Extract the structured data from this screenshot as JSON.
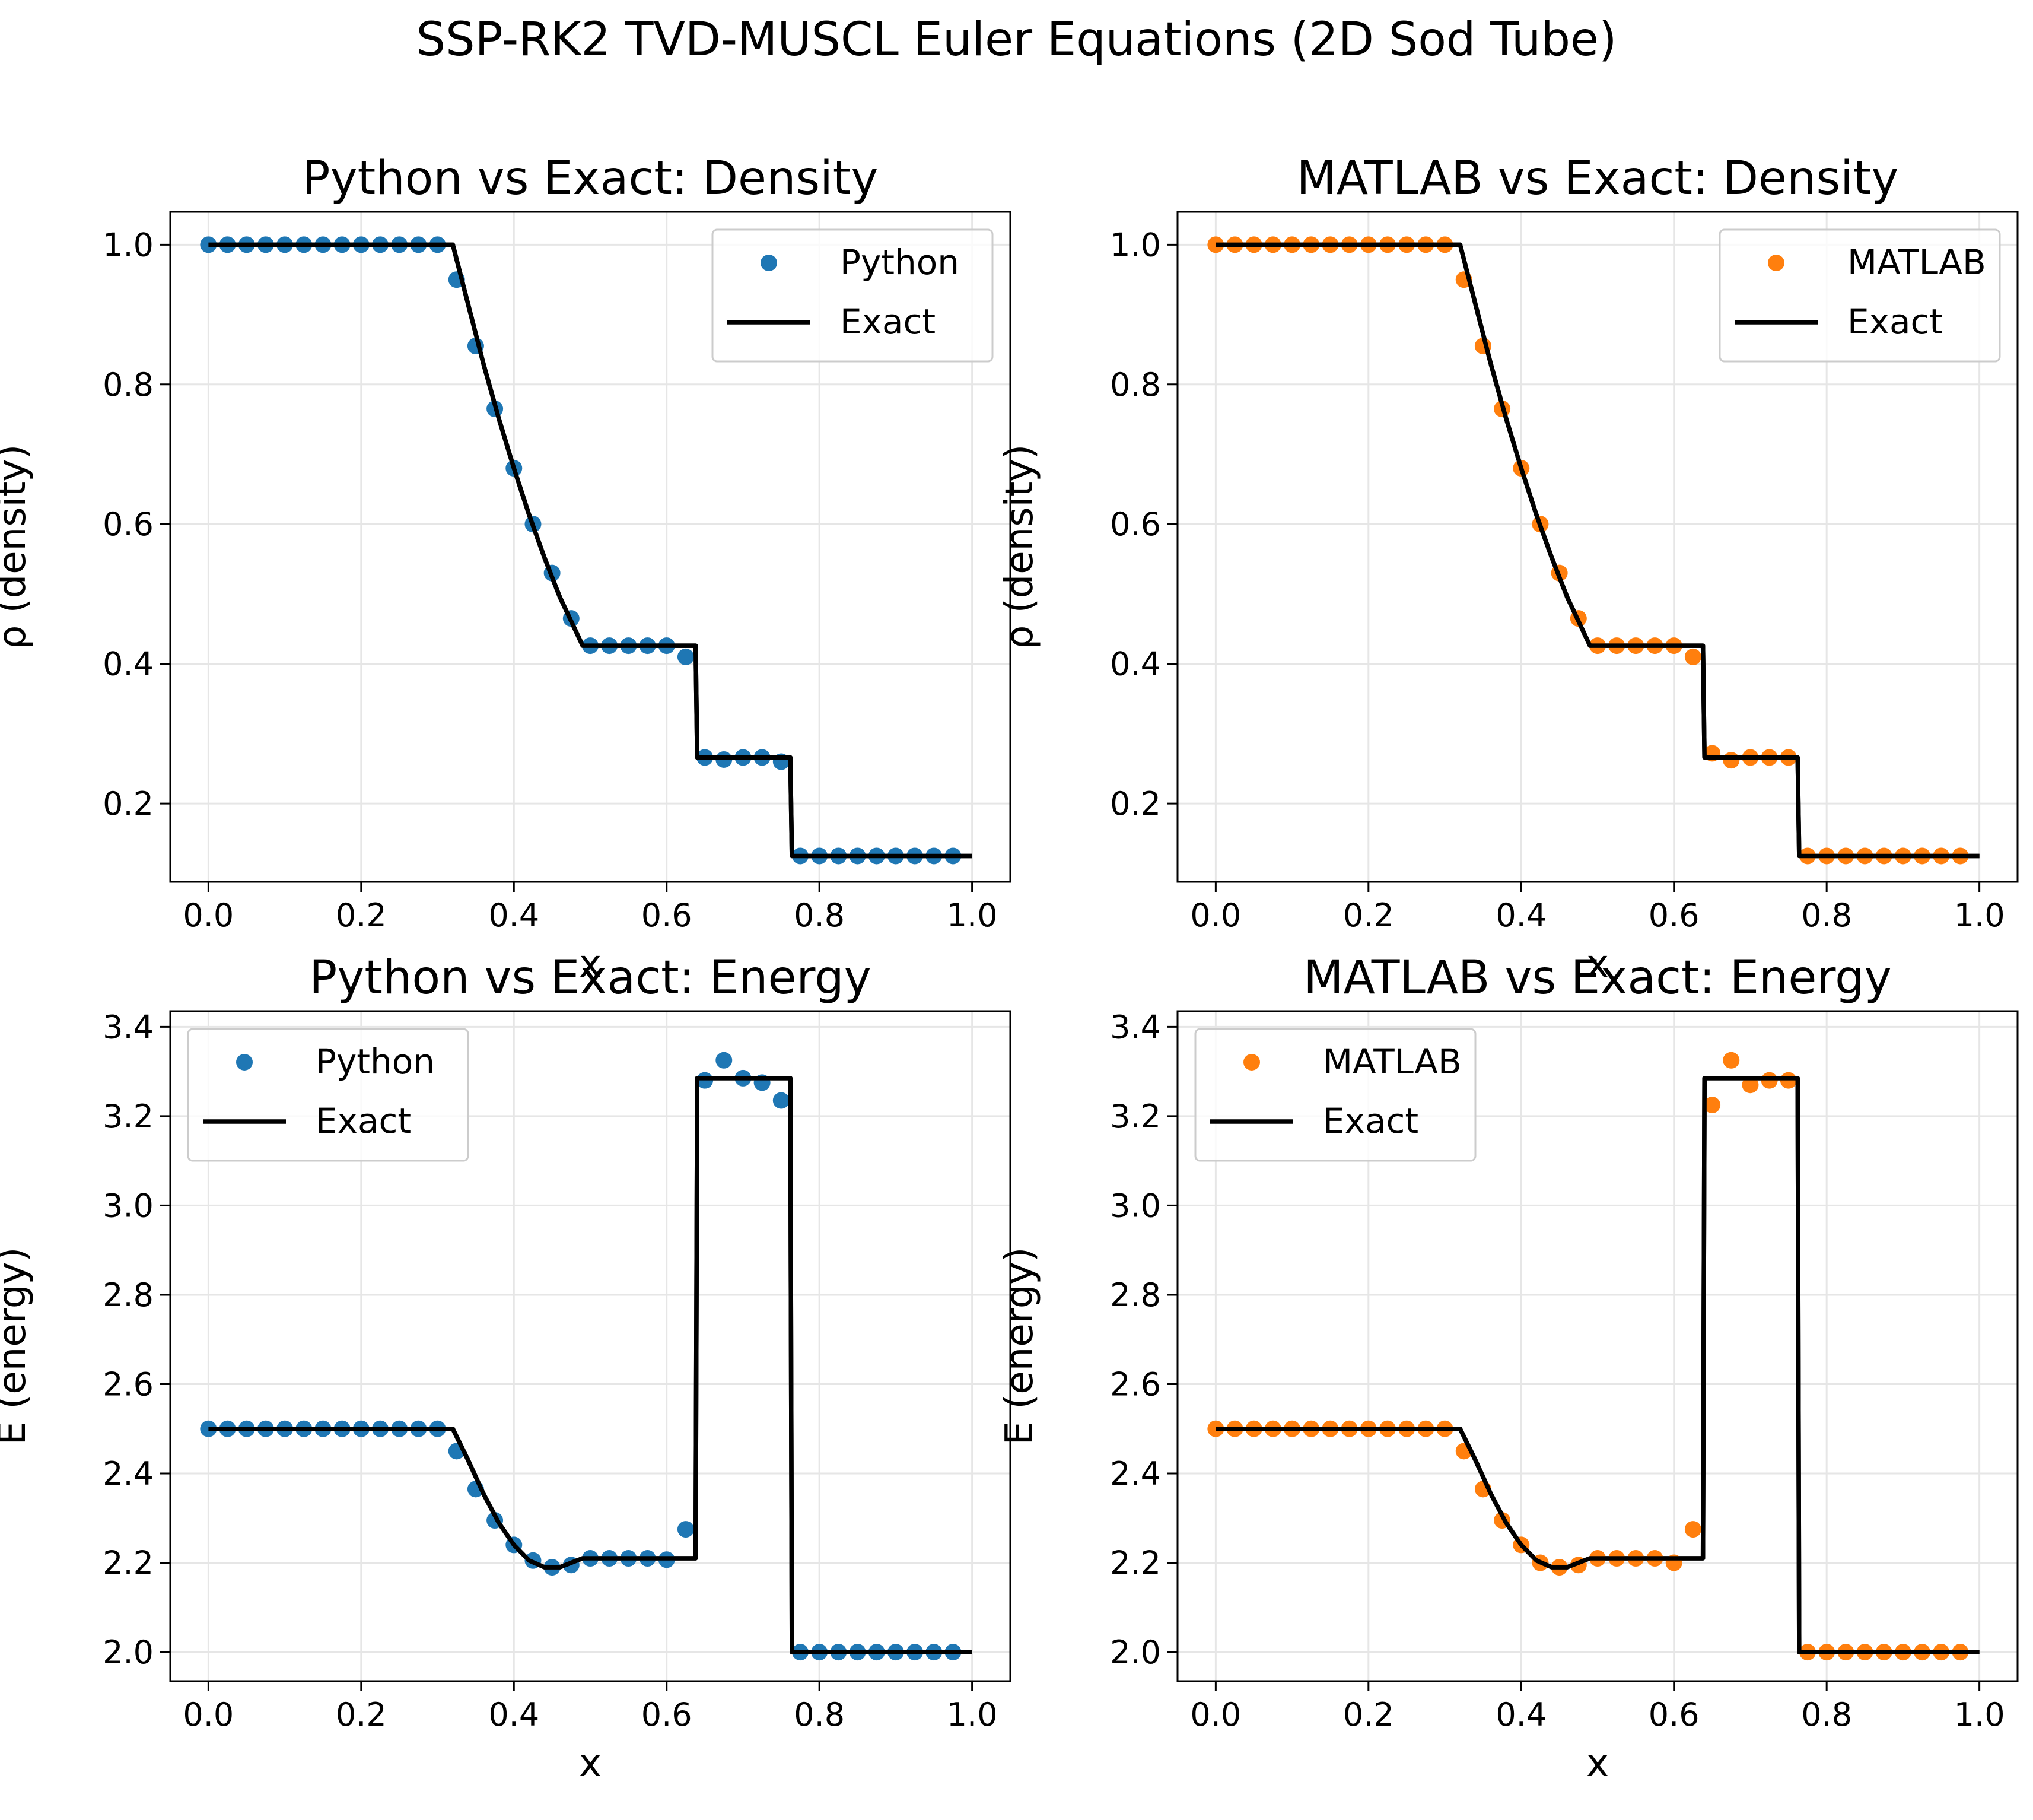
{
  "figure": {
    "title": "SSP-RK2 TVD-MUSCL Euler Equations (2D Sod Tube)"
  },
  "chart_data": [
    {
      "type": "line",
      "title": "Python vs Exact: Density",
      "xlabel": "x",
      "ylabel": "ρ (density)",
      "xlim": [
        -0.05,
        1.05
      ],
      "ylim": [
        0.088,
        1.047
      ],
      "xticks": [
        "0.0",
        "0.2",
        "0.4",
        "0.6",
        "0.8",
        "1.0"
      ],
      "yticks": [
        "0.2",
        "0.4",
        "0.6",
        "0.8",
        "1.0"
      ],
      "grid": true,
      "legend_position": "upper-right",
      "series": [
        {
          "name": "Python",
          "style": "markers",
          "color": "#1f77b4",
          "x": [
            0.0,
            0.025,
            0.05,
            0.075,
            0.1,
            0.125,
            0.15,
            0.175,
            0.2,
            0.225,
            0.25,
            0.275,
            0.3,
            0.325,
            0.35,
            0.375,
            0.4,
            0.425,
            0.45,
            0.475,
            0.5,
            0.525,
            0.55,
            0.575,
            0.6,
            0.625,
            0.65,
            0.675,
            0.7,
            0.725,
            0.75,
            0.775,
            0.8,
            0.825,
            0.85,
            0.875,
            0.9,
            0.925,
            0.95,
            0.975
          ],
          "y": [
            1.0,
            1.0,
            1.0,
            1.0,
            1.0,
            1.0,
            1.0,
            1.0,
            1.0,
            1.0,
            1.0,
            1.0,
            1.0,
            0.95,
            0.855,
            0.765,
            0.68,
            0.6,
            0.53,
            0.465,
            0.426,
            0.426,
            0.426,
            0.426,
            0.426,
            0.41,
            0.266,
            0.263,
            0.266,
            0.266,
            0.26,
            0.125,
            0.125,
            0.125,
            0.125,
            0.125,
            0.125,
            0.125,
            0.125,
            0.125
          ]
        },
        {
          "name": "Exact",
          "style": "line",
          "color": "#000000",
          "x": [
            0.0,
            0.32,
            0.34,
            0.36,
            0.38,
            0.4,
            0.42,
            0.44,
            0.46,
            0.49,
            0.638,
            0.64,
            0.762,
            0.764,
            1.0
          ],
          "y": [
            1.0,
            1.0,
            0.915,
            0.83,
            0.752,
            0.68,
            0.613,
            0.552,
            0.496,
            0.426,
            0.426,
            0.266,
            0.266,
            0.125,
            0.125
          ]
        }
      ]
    },
    {
      "type": "line",
      "title": "MATLAB vs Exact: Density",
      "xlabel": "x",
      "ylabel": "ρ (density)",
      "xlim": [
        -0.05,
        1.05
      ],
      "ylim": [
        0.088,
        1.047
      ],
      "xticks": [
        "0.0",
        "0.2",
        "0.4",
        "0.6",
        "0.8",
        "1.0"
      ],
      "yticks": [
        "0.2",
        "0.4",
        "0.6",
        "0.8",
        "1.0"
      ],
      "grid": true,
      "legend_position": "upper-right",
      "series": [
        {
          "name": "MATLAB",
          "style": "markers",
          "color": "#ff7f0e",
          "x": [
            0.0,
            0.025,
            0.05,
            0.075,
            0.1,
            0.125,
            0.15,
            0.175,
            0.2,
            0.225,
            0.25,
            0.275,
            0.3,
            0.325,
            0.35,
            0.375,
            0.4,
            0.425,
            0.45,
            0.475,
            0.5,
            0.525,
            0.55,
            0.575,
            0.6,
            0.625,
            0.65,
            0.675,
            0.7,
            0.725,
            0.75,
            0.775,
            0.8,
            0.825,
            0.85,
            0.875,
            0.9,
            0.925,
            0.95,
            0.975
          ],
          "y": [
            1.0,
            1.0,
            1.0,
            1.0,
            1.0,
            1.0,
            1.0,
            1.0,
            1.0,
            1.0,
            1.0,
            1.0,
            1.0,
            0.95,
            0.855,
            0.765,
            0.68,
            0.6,
            0.53,
            0.465,
            0.426,
            0.426,
            0.426,
            0.426,
            0.426,
            0.41,
            0.272,
            0.262,
            0.266,
            0.266,
            0.266,
            0.125,
            0.125,
            0.125,
            0.125,
            0.125,
            0.125,
            0.125,
            0.125,
            0.125
          ]
        },
        {
          "name": "Exact",
          "style": "line",
          "color": "#000000",
          "x": [
            0.0,
            0.32,
            0.34,
            0.36,
            0.38,
            0.4,
            0.42,
            0.44,
            0.46,
            0.49,
            0.638,
            0.64,
            0.762,
            0.764,
            1.0
          ],
          "y": [
            1.0,
            1.0,
            0.915,
            0.83,
            0.752,
            0.68,
            0.613,
            0.552,
            0.496,
            0.426,
            0.426,
            0.266,
            0.266,
            0.125,
            0.125
          ]
        }
      ]
    },
    {
      "type": "line",
      "title": "Python vs Exact: Energy",
      "xlabel": "x",
      "ylabel": "E (energy)",
      "xlim": [
        -0.05,
        1.05
      ],
      "ylim": [
        1.935,
        3.435
      ],
      "xticks": [
        "0.0",
        "0.2",
        "0.4",
        "0.6",
        "0.8",
        "1.0"
      ],
      "yticks": [
        "2.0",
        "2.2",
        "2.4",
        "2.6",
        "2.8",
        "3.0",
        "3.2",
        "3.4"
      ],
      "grid": true,
      "legend_position": "upper-left",
      "series": [
        {
          "name": "Python",
          "style": "markers",
          "color": "#1f77b4",
          "x": [
            0.0,
            0.025,
            0.05,
            0.075,
            0.1,
            0.125,
            0.15,
            0.175,
            0.2,
            0.225,
            0.25,
            0.275,
            0.3,
            0.325,
            0.35,
            0.375,
            0.4,
            0.425,
            0.45,
            0.475,
            0.5,
            0.525,
            0.55,
            0.575,
            0.6,
            0.625,
            0.65,
            0.675,
            0.7,
            0.725,
            0.75,
            0.775,
            0.8,
            0.825,
            0.85,
            0.875,
            0.9,
            0.925,
            0.95,
            0.975
          ],
          "y": [
            2.5,
            2.5,
            2.5,
            2.5,
            2.5,
            2.5,
            2.5,
            2.5,
            2.5,
            2.5,
            2.5,
            2.5,
            2.5,
            2.45,
            2.365,
            2.295,
            2.24,
            2.205,
            2.19,
            2.195,
            2.21,
            2.21,
            2.21,
            2.21,
            2.207,
            2.275,
            3.28,
            3.325,
            3.285,
            3.275,
            3.235,
            2.0,
            2.0,
            2.0,
            2.0,
            2.0,
            2.0,
            2.0,
            2.0,
            2.0
          ]
        },
        {
          "name": "Exact",
          "style": "line",
          "color": "#000000",
          "x": [
            0.0,
            0.32,
            0.34,
            0.36,
            0.38,
            0.4,
            0.42,
            0.44,
            0.46,
            0.49,
            0.638,
            0.64,
            0.762,
            0.764,
            1.0
          ],
          "y": [
            2.5,
            2.5,
            2.43,
            2.355,
            2.29,
            2.24,
            2.205,
            2.19,
            2.19,
            2.21,
            2.21,
            3.285,
            3.285,
            2.0,
            2.0
          ]
        }
      ]
    },
    {
      "type": "line",
      "title": "MATLAB vs Exact: Energy",
      "xlabel": "x",
      "ylabel": "E (energy)",
      "xlim": [
        -0.05,
        1.05
      ],
      "ylim": [
        1.935,
        3.435
      ],
      "xticks": [
        "0.0",
        "0.2",
        "0.4",
        "0.6",
        "0.8",
        "1.0"
      ],
      "yticks": [
        "2.0",
        "2.2",
        "2.4",
        "2.6",
        "2.8",
        "3.0",
        "3.2",
        "3.4"
      ],
      "grid": true,
      "legend_position": "upper-left",
      "series": [
        {
          "name": "MATLAB",
          "style": "markers",
          "color": "#ff7f0e",
          "x": [
            0.0,
            0.025,
            0.05,
            0.075,
            0.1,
            0.125,
            0.15,
            0.175,
            0.2,
            0.225,
            0.25,
            0.275,
            0.3,
            0.325,
            0.35,
            0.375,
            0.4,
            0.425,
            0.45,
            0.475,
            0.5,
            0.525,
            0.55,
            0.575,
            0.6,
            0.625,
            0.65,
            0.675,
            0.7,
            0.725,
            0.75,
            0.775,
            0.8,
            0.825,
            0.85,
            0.875,
            0.9,
            0.925,
            0.95,
            0.975
          ],
          "y": [
            2.5,
            2.5,
            2.5,
            2.5,
            2.5,
            2.5,
            2.5,
            2.5,
            2.5,
            2.5,
            2.5,
            2.5,
            2.5,
            2.45,
            2.365,
            2.295,
            2.24,
            2.2,
            2.19,
            2.195,
            2.21,
            2.21,
            2.21,
            2.21,
            2.2,
            2.275,
            3.225,
            3.325,
            3.27,
            3.28,
            3.28,
            2.0,
            2.0,
            2.0,
            2.0,
            2.0,
            2.0,
            2.0,
            2.0,
            2.0
          ]
        },
        {
          "name": "Exact",
          "style": "line",
          "color": "#000000",
          "x": [
            0.0,
            0.32,
            0.34,
            0.36,
            0.38,
            0.4,
            0.42,
            0.44,
            0.46,
            0.49,
            0.638,
            0.64,
            0.762,
            0.764,
            1.0
          ],
          "y": [
            2.5,
            2.5,
            2.43,
            2.355,
            2.29,
            2.24,
            2.205,
            2.19,
            2.19,
            2.21,
            2.21,
            3.285,
            3.285,
            2.0,
            2.0
          ]
        }
      ]
    }
  ]
}
